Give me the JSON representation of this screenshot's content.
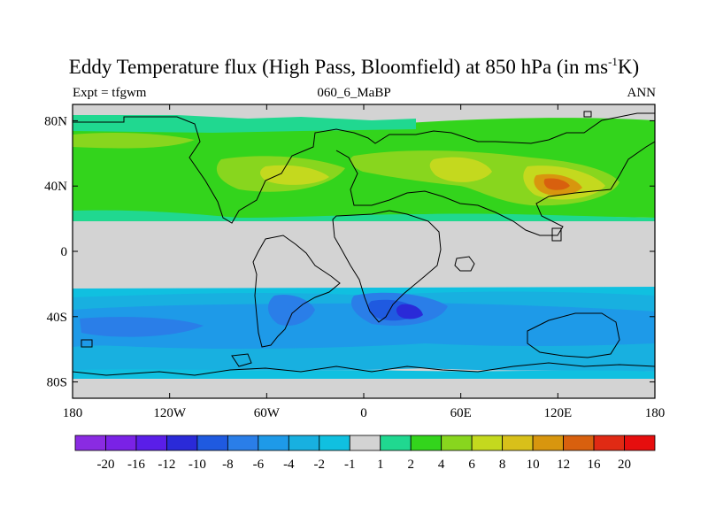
{
  "title": {
    "main": "Eddy Temperature flux (High Pass, Bloomfield) at 850 hPa (in ms",
    "sup": "-1",
    "tail": "K)"
  },
  "subtitle": {
    "left": "Expt = tfgwm",
    "center": "060_6_MaBP",
    "right": "ANN"
  },
  "map": {
    "lon_range": [
      -180,
      180
    ],
    "lat_range": [
      -90,
      90
    ],
    "x_ticks": [
      {
        "value": -180,
        "label": "180"
      },
      {
        "value": -120,
        "label": "120W"
      },
      {
        "value": -60,
        "label": "60W"
      },
      {
        "value": 0,
        "label": "0"
      },
      {
        "value": 60,
        "label": "60E"
      },
      {
        "value": 120,
        "label": "120E"
      },
      {
        "value": 180,
        "label": "180"
      }
    ],
    "y_ticks": [
      {
        "value": 80,
        "label": "80N"
      },
      {
        "value": 40,
        "label": "40N"
      },
      {
        "value": 0,
        "label": "0"
      },
      {
        "value": -40,
        "label": "40S"
      },
      {
        "value": -80,
        "label": "80S"
      }
    ],
    "colorbar": {
      "labels": [
        "-20",
        "-16",
        "-12",
        "-10",
        "-8",
        "-6",
        "-4",
        "-2",
        "-1",
        "1",
        "2",
        "4",
        "6",
        "8",
        "10",
        "12",
        "16",
        "20"
      ],
      "colors": [
        "#8a2be2",
        "#7a22e6",
        "#5a1ee8",
        "#2a2ad8",
        "#1f5ae0",
        "#2a7ee8",
        "#1e9ae8",
        "#18b0e0",
        "#10c0e0",
        "#d3d3d3",
        "#20d890",
        "#33d41c",
        "#88d61e",
        "#c4d91e",
        "#d8c01a",
        "#d8960e",
        "#d8600e",
        "#e02a14",
        "#e60e0e"
      ]
    }
  }
}
